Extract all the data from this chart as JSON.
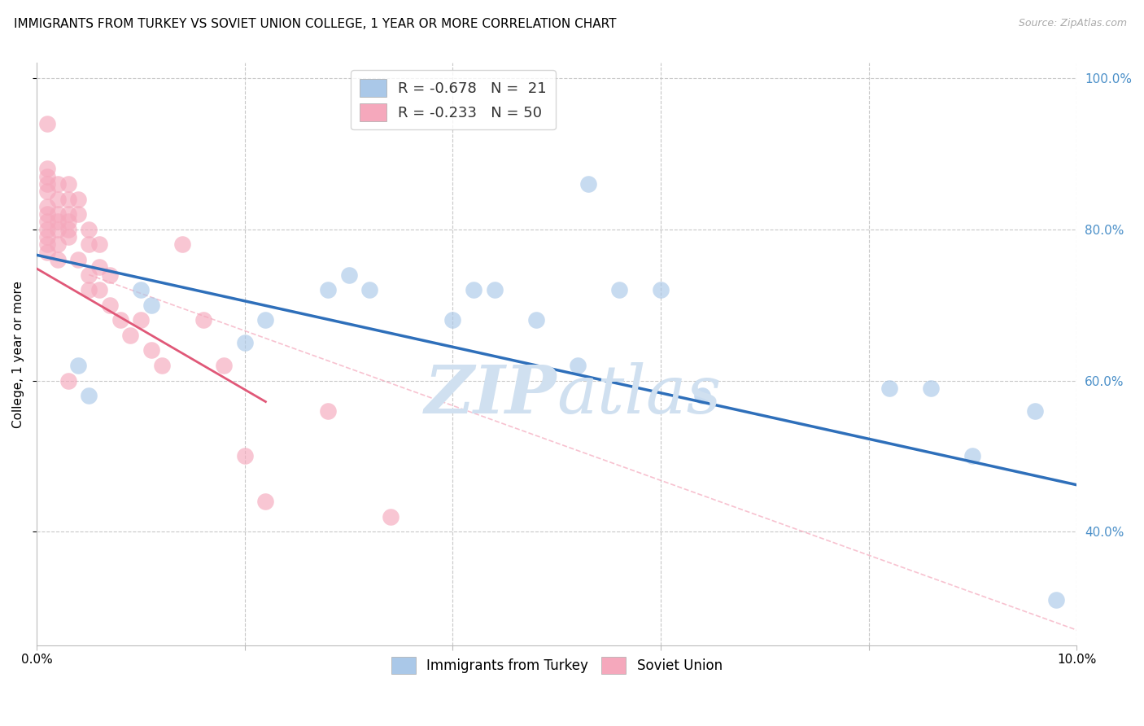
{
  "title": "IMMIGRANTS FROM TURKEY VS SOVIET UNION COLLEGE, 1 YEAR OR MORE CORRELATION CHART",
  "source": "Source: ZipAtlas.com",
  "ylabel": "College, 1 year or more",
  "x_min": 0.0,
  "x_max": 0.1,
  "y_min": 0.25,
  "y_max": 1.02,
  "x_ticks": [
    0.0,
    0.02,
    0.04,
    0.06,
    0.08,
    0.1
  ],
  "x_tick_labels": [
    "0.0%",
    "",
    "",
    "",
    "",
    "10.0%"
  ],
  "y_ticks_right": [
    0.4,
    0.6,
    0.8,
    1.0
  ],
  "y_tick_labels_right": [
    "40.0%",
    "60.0%",
    "80.0%",
    "100.0%"
  ],
  "turkey_points": [
    [
      0.004,
      0.62
    ],
    [
      0.005,
      0.58
    ],
    [
      0.01,
      0.72
    ],
    [
      0.011,
      0.7
    ],
    [
      0.02,
      0.65
    ],
    [
      0.022,
      0.68
    ],
    [
      0.028,
      0.72
    ],
    [
      0.03,
      0.74
    ],
    [
      0.032,
      0.72
    ],
    [
      0.04,
      0.68
    ],
    [
      0.042,
      0.72
    ],
    [
      0.044,
      0.72
    ],
    [
      0.048,
      0.68
    ],
    [
      0.052,
      0.62
    ],
    [
      0.056,
      0.72
    ],
    [
      0.06,
      0.72
    ],
    [
      0.053,
      0.86
    ],
    [
      0.064,
      0.58
    ],
    [
      0.082,
      0.59
    ],
    [
      0.086,
      0.59
    ],
    [
      0.09,
      0.5
    ],
    [
      0.096,
      0.56
    ],
    [
      0.098,
      0.31
    ]
  ],
  "soviet_points": [
    [
      0.001,
      0.94
    ],
    [
      0.001,
      0.88
    ],
    [
      0.001,
      0.87
    ],
    [
      0.001,
      0.86
    ],
    [
      0.001,
      0.85
    ],
    [
      0.001,
      0.83
    ],
    [
      0.001,
      0.82
    ],
    [
      0.001,
      0.81
    ],
    [
      0.001,
      0.8
    ],
    [
      0.001,
      0.79
    ],
    [
      0.001,
      0.78
    ],
    [
      0.001,
      0.77
    ],
    [
      0.002,
      0.86
    ],
    [
      0.002,
      0.84
    ],
    [
      0.002,
      0.82
    ],
    [
      0.002,
      0.81
    ],
    [
      0.002,
      0.8
    ],
    [
      0.002,
      0.78
    ],
    [
      0.002,
      0.76
    ],
    [
      0.003,
      0.86
    ],
    [
      0.003,
      0.84
    ],
    [
      0.003,
      0.82
    ],
    [
      0.003,
      0.81
    ],
    [
      0.003,
      0.8
    ],
    [
      0.003,
      0.79
    ],
    [
      0.004,
      0.84
    ],
    [
      0.004,
      0.82
    ],
    [
      0.004,
      0.76
    ],
    [
      0.005,
      0.8
    ],
    [
      0.005,
      0.78
    ],
    [
      0.005,
      0.74
    ],
    [
      0.005,
      0.72
    ],
    [
      0.006,
      0.78
    ],
    [
      0.006,
      0.75
    ],
    [
      0.006,
      0.72
    ],
    [
      0.007,
      0.74
    ],
    [
      0.007,
      0.7
    ],
    [
      0.008,
      0.68
    ],
    [
      0.009,
      0.66
    ],
    [
      0.01,
      0.68
    ],
    [
      0.011,
      0.64
    ],
    [
      0.012,
      0.62
    ],
    [
      0.014,
      0.78
    ],
    [
      0.016,
      0.68
    ],
    [
      0.018,
      0.62
    ],
    [
      0.02,
      0.5
    ],
    [
      0.022,
      0.44
    ],
    [
      0.028,
      0.56
    ],
    [
      0.034,
      0.42
    ],
    [
      0.003,
      0.6
    ]
  ],
  "turkey_color": "#aac8e8",
  "soviet_color": "#f5a8bc",
  "turkey_line_color": "#2e6fba",
  "soviet_line_color": "#e05878",
  "diagonal_color": "#f5a8bc",
  "background_color": "#ffffff",
  "grid_color": "#c8c8c8",
  "title_fontsize": 11,
  "axis_label_fontsize": 11,
  "tick_fontsize": 11,
  "right_tick_color": "#4a8fc8",
  "watermark_color": "#d0e0f0",
  "watermark_fontsize": 60,
  "turkey_line_x": [
    0.0,
    0.1
  ],
  "turkey_line_y": [
    0.766,
    0.462
  ],
  "soviet_line_x": [
    0.0,
    0.022
  ],
  "soviet_line_y": [
    0.748,
    0.572
  ]
}
